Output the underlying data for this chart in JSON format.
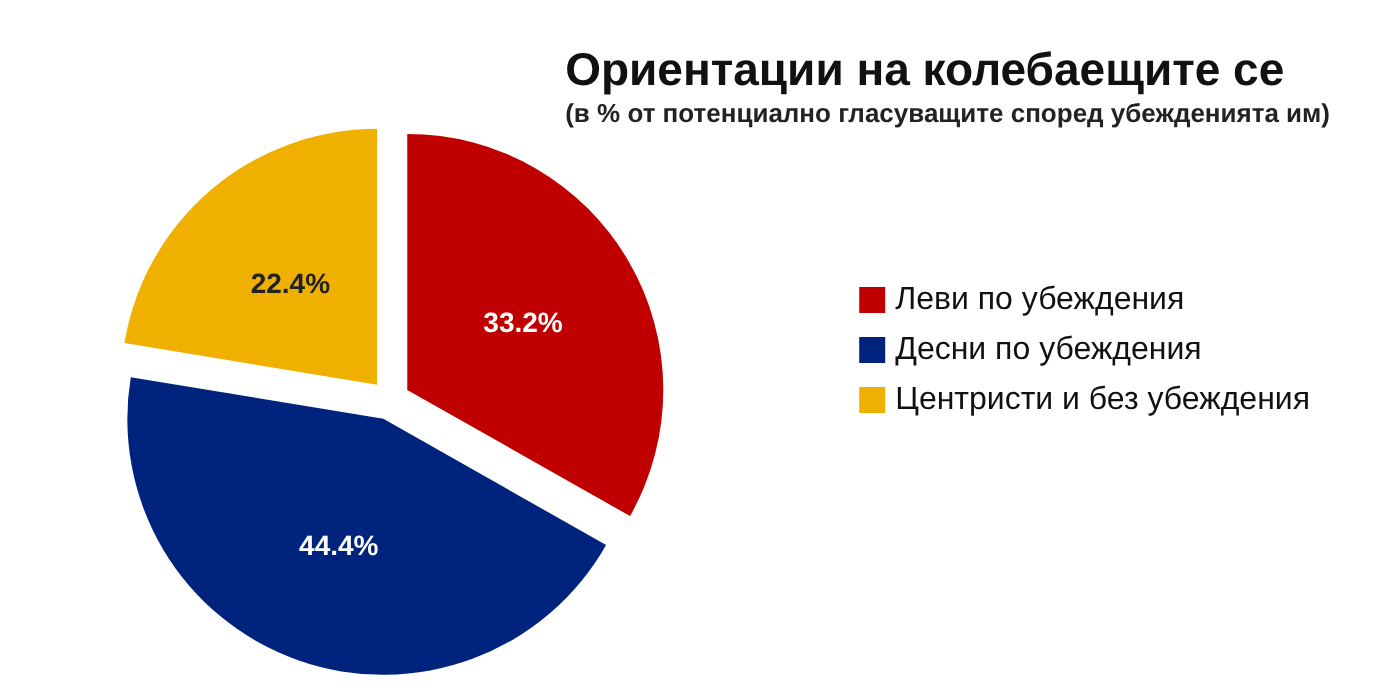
{
  "chart_data": {
    "type": "pie",
    "title": "Ориентации на колебаещите се",
    "subtitle": "(в % от потенциално гласуващите според убежденията им)",
    "categories": [
      "Леви по убеждения",
      "Десни по убеждения",
      "Центристи и без убеждения"
    ],
    "values": [
      33.2,
      44.4,
      22.4
    ],
    "colors": [
      "#c00000",
      "#00247d",
      "#f0b000"
    ],
    "value_labels": [
      "33.2%",
      "44.4%",
      "22.4%"
    ],
    "legend": "right"
  }
}
